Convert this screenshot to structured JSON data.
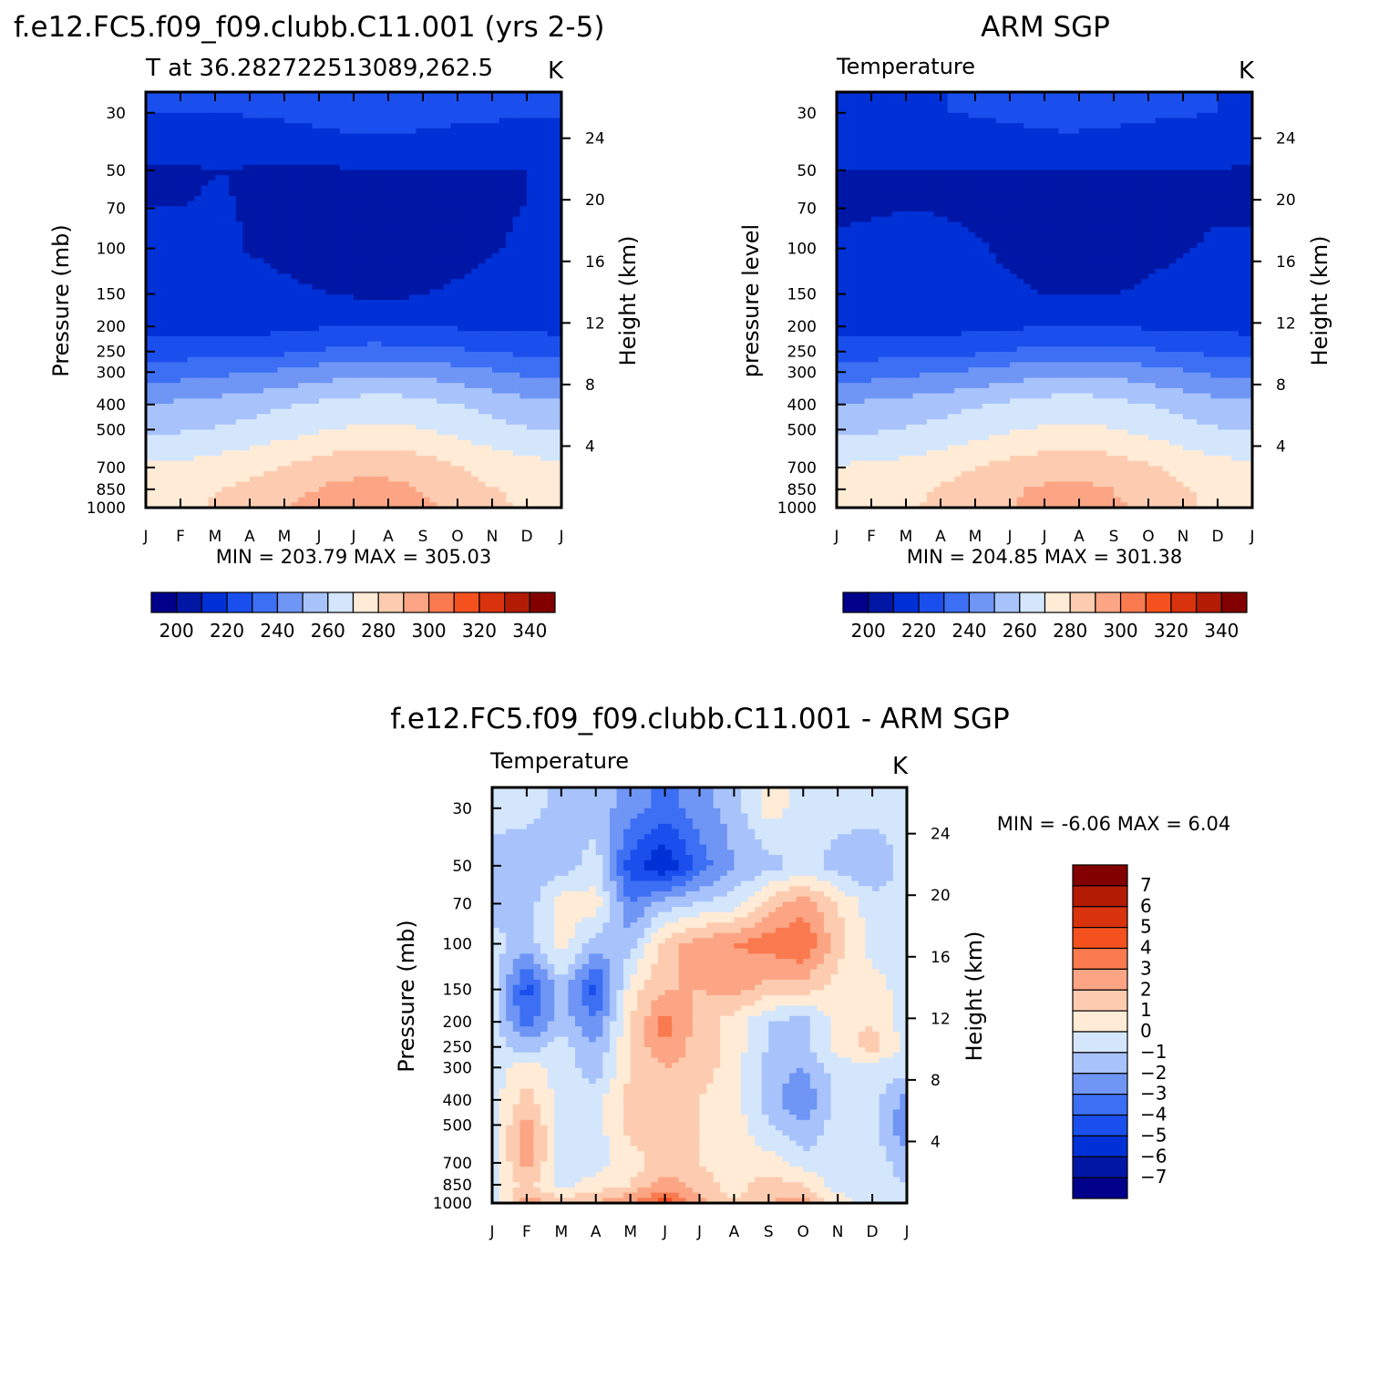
{
  "chart_data": [
    {
      "type": "heatmap",
      "title": "f.e12.FC5.f09_f09.clubb.C11.001 (yrs 2-5)",
      "subtitle_left": "T at 36.282722513089,262.5",
      "subtitle_right": "K",
      "ylabel": "Pressure (mb)",
      "ylabel_right": "Height (km)",
      "stats": "MIN =  203.79  MAX =  305.03",
      "x_ticks": [
        "J",
        "F",
        "M",
        "A",
        "M",
        "J",
        "J",
        "A",
        "S",
        "O",
        "N",
        "D",
        "J"
      ],
      "y_ticks": [
        "30",
        "50",
        "70",
        "100",
        "150",
        "200",
        "250",
        "300",
        "400",
        "500",
        "700",
        "850",
        "1000"
      ],
      "height_ticks": [
        "24",
        "20",
        "16",
        "12",
        "8",
        "4"
      ],
      "colorbar_labels": [
        "200",
        "220",
        "240",
        "260",
        "280",
        "300",
        "320",
        "340"
      ],
      "levels": [
        1000,
        850,
        700,
        500,
        400,
        300,
        250,
        200,
        150,
        100,
        70,
        50,
        30
      ],
      "values": [
        [
          278,
          279,
          281,
          286,
          291,
          296,
          297,
          294,
          289,
          283,
          279,
          278
        ],
        [
          277,
          278,
          280,
          284,
          288,
          292,
          293,
          291,
          286,
          281,
          278,
          277
        ],
        [
          272,
          273,
          275,
          278,
          282,
          286,
          288,
          286,
          282,
          277,
          274,
          272
        ],
        [
          258,
          259,
          261,
          264,
          267,
          270,
          272,
          271,
          268,
          264,
          261,
          259
        ],
        [
          251,
          252,
          254,
          257,
          260,
          263,
          265,
          264,
          261,
          257,
          254,
          252
        ],
        [
          235,
          236,
          238,
          240,
          243,
          246,
          248,
          248,
          245,
          242,
          238,
          236
        ],
        [
          226,
          226,
          226,
          226,
          229,
          232,
          234,
          234,
          232,
          230,
          228,
          226
        ],
        [
          217,
          217,
          217,
          217,
          218,
          220,
          221,
          220,
          219,
          219,
          218,
          217
        ],
        [
          216,
          214,
          216,
          216,
          212,
          210,
          208,
          209,
          211,
          213,
          213,
          214
        ],
        [
          213,
          210,
          213,
          208,
          205,
          203,
          204,
          205,
          206,
          209,
          211,
          212
        ],
        [
          210,
          210,
          211,
          208,
          206,
          206,
          207,
          207,
          208,
          209,
          210,
          210
        ],
        [
          209,
          209,
          210,
          209,
          209,
          209,
          210,
          210,
          210,
          210,
          210,
          210
        ],
        [
          220,
          220,
          220,
          221,
          222,
          225,
          226,
          225,
          223,
          222,
          221,
          221
        ]
      ]
    },
    {
      "type": "heatmap",
      "title": "ARM SGP",
      "subtitle_left": "Temperature",
      "subtitle_right": "K",
      "ylabel": "pressure level",
      "ylabel_right": "Height (km)",
      "stats": "MIN =  204.85  MAX =  301.38",
      "x_ticks": [
        "J",
        "F",
        "M",
        "A",
        "M",
        "J",
        "J",
        "A",
        "S",
        "O",
        "N",
        "D",
        "J"
      ],
      "y_ticks": [
        "30",
        "50",
        "70",
        "100",
        "150",
        "200",
        "250",
        "300",
        "400",
        "500",
        "700",
        "850",
        "1000"
      ],
      "height_ticks": [
        "24",
        "20",
        "16",
        "12",
        "8",
        "4"
      ],
      "colorbar_labels": [
        "200",
        "220",
        "240",
        "260",
        "280",
        "300",
        "320",
        "340"
      ],
      "levels": [
        1000,
        850,
        700,
        500,
        400,
        300,
        250,
        200,
        150,
        100,
        70,
        50,
        30
      ],
      "values": [
        [
          276,
          277,
          279,
          283,
          287,
          291,
          294,
          293,
          289,
          283,
          278,
          276
        ],
        [
          275,
          276,
          278,
          282,
          286,
          290,
          292,
          291,
          287,
          282,
          277,
          275
        ],
        [
          271,
          272,
          274,
          277,
          281,
          285,
          287,
          286,
          283,
          278,
          274,
          272
        ],
        [
          258,
          259,
          261,
          264,
          267,
          270,
          272,
          271,
          268,
          264,
          261,
          259
        ],
        [
          251,
          252,
          254,
          257,
          260,
          263,
          265,
          264,
          261,
          257,
          254,
          252
        ],
        [
          235,
          236,
          238,
          240,
          243,
          246,
          248,
          248,
          245,
          242,
          238,
          236
        ],
        [
          226,
          226,
          226,
          226,
          229,
          232,
          234,
          234,
          232,
          230,
          228,
          226
        ],
        [
          217,
          217,
          217,
          217,
          218,
          219,
          220,
          220,
          219,
          218,
          218,
          217
        ],
        [
          215,
          215,
          215,
          215,
          214,
          211,
          209,
          209,
          211,
          213,
          214,
          215
        ],
        [
          212,
          213,
          214,
          212,
          210,
          206,
          205,
          206,
          207,
          209,
          211,
          212
        ],
        [
          208,
          209,
          210,
          209,
          209,
          208,
          208,
          208,
          208,
          209,
          209,
          208
        ],
        [
          210,
          210,
          210,
          210,
          210,
          210,
          210,
          210,
          210,
          210,
          210,
          209
        ],
        [
          218,
          218,
          219,
          220,
          221,
          223,
          225,
          224,
          222,
          221,
          220,
          219
        ]
      ]
    },
    {
      "type": "heatmap",
      "title": "f.e12.FC5.f09_f09.clubb.C11.001 - ARM SGP",
      "subtitle_left": "Temperature",
      "subtitle_right": "K",
      "ylabel": "Pressure (mb)",
      "ylabel_right": "Height (km)",
      "stats": "MIN =  -6.06  MAX =  6.04",
      "x_ticks": [
        "J",
        "F",
        "M",
        "A",
        "M",
        "J",
        "J",
        "A",
        "S",
        "O",
        "N",
        "D",
        "J"
      ],
      "y_ticks": [
        "30",
        "50",
        "70",
        "100",
        "150",
        "200",
        "250",
        "300",
        "400",
        "500",
        "700",
        "850",
        "1000"
      ],
      "height_ticks": [
        "24",
        "20",
        "16",
        "12",
        "8",
        "4"
      ],
      "colorbar_labels": [
        "7",
        "6",
        "5",
        "4",
        "3",
        "2",
        "1",
        "0",
        "-1",
        "-2",
        "-3",
        "-4",
        "-5",
        "-6",
        "-7"
      ],
      "levels": [
        1000,
        850,
        700,
        500,
        400,
        300,
        250,
        200,
        150,
        100,
        70,
        50,
        30
      ],
      "values": [
        [
          -0.5,
          2.5,
          1.5,
          2.0,
          3.0,
          4.5,
          2.5,
          1.0,
          2.0,
          2.5,
          0.5,
          -0.5,
          -0.5
        ],
        [
          -0.5,
          1.5,
          -0.5,
          0.5,
          1.0,
          2.5,
          1.5,
          0.5,
          1.5,
          1.0,
          -0.5,
          -0.5,
          -1.0
        ],
        [
          -0.5,
          2.5,
          -0.5,
          -0.5,
          0.5,
          1.5,
          1.0,
          0.5,
          0.5,
          -0.5,
          -0.5,
          -0.5,
          -1.5
        ],
        [
          -0.5,
          2.5,
          -0.5,
          -0.5,
          1.5,
          1.5,
          1.0,
          0.5,
          -1.0,
          -2.0,
          -0.5,
          -0.5,
          -3.0
        ],
        [
          -0.5,
          1.5,
          -0.5,
          -0.5,
          1.5,
          1.5,
          1.0,
          0.5,
          -1.5,
          -3.0,
          -0.5,
          -0.5,
          -2.5
        ],
        [
          -0.5,
          0.5,
          -0.5,
          -1.5,
          1.0,
          2.0,
          1.5,
          0.5,
          -1.5,
          -2.0,
          -0.5,
          -0.5,
          -0.5
        ],
        [
          -0.5,
          -1.5,
          -0.5,
          -2.0,
          1.0,
          3.0,
          1.5,
          0.5,
          -1.0,
          -1.5,
          0.5,
          1.5,
          -0.5
        ],
        [
          -0.5,
          -3.5,
          -1.5,
          -3.0,
          1.0,
          3.5,
          1.5,
          0.5,
          -1.0,
          -1.5,
          0.5,
          1.0,
          -0.5
        ],
        [
          -0.5,
          -4.5,
          -1.5,
          -4.5,
          0.5,
          2.0,
          2.0,
          2.5,
          1.5,
          1.5,
          0.5,
          0.5,
          -0.5
        ],
        [
          -0.5,
          -1.5,
          0.5,
          -1.5,
          -1.5,
          1.5,
          2.5,
          3.0,
          3.5,
          4.0,
          1.5,
          -0.5,
          -0.5
        ],
        [
          -1.5,
          -1.5,
          0.5,
          0.5,
          -3.0,
          -1.5,
          -1.0,
          -0.5,
          1.5,
          2.5,
          1.0,
          -0.5,
          -0.5
        ],
        [
          -1.5,
          -2.0,
          -1.5,
          -0.5,
          -4.5,
          -6.0,
          -3.5,
          -2.0,
          -1.5,
          -0.5,
          -1.5,
          -2.0,
          -0.5
        ],
        [
          -0.5,
          -0.5,
          -1.5,
          -1.5,
          -2.5,
          -3.5,
          -2.5,
          -1.5,
          0.5,
          -0.5,
          -0.5,
          -0.5,
          -0.5
        ]
      ]
    }
  ]
}
